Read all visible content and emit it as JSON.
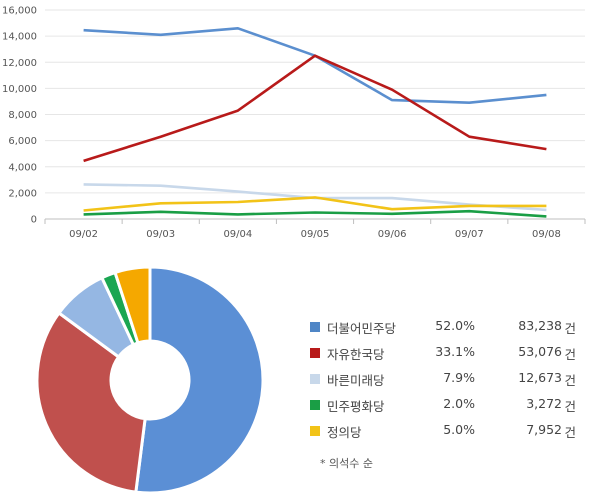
{
  "chart_data": [
    {
      "type": "line",
      "x": [
        "09/02",
        "09/03",
        "09/04",
        "09/05",
        "09/06",
        "09/07",
        "09/08"
      ],
      "ylim": [
        0,
        16000
      ],
      "yticks": [
        "0",
        "2,000",
        "4,000",
        "6,000",
        "8,000",
        "10,000",
        "12,000",
        "14,000",
        "16,000"
      ],
      "grid": true,
      "series": [
        {
          "color": "#5b8fcf",
          "values": [
            14450,
            14100,
            14600,
            12500,
            9100,
            8900,
            9500
          ]
        },
        {
          "color": "#b81a1a",
          "values": [
            4450,
            6300,
            8300,
            12500,
            9900,
            6300,
            5350
          ]
        },
        {
          "color": "#c8d8ea",
          "values": [
            2650,
            2550,
            2100,
            1600,
            1600,
            1100,
            700
          ]
        },
        {
          "color": "#f2c318",
          "values": [
            650,
            1200,
            1300,
            1650,
            750,
            1000,
            1000
          ]
        },
        {
          "color": "#1a9e45",
          "values": [
            350,
            550,
            350,
            500,
            400,
            600,
            200
          ]
        }
      ]
    },
    {
      "type": "pie",
      "slices": [
        {
          "label": "더불어민주당",
          "pct": "52.0%",
          "value": 52.0,
          "count": "83,238",
          "unit": "건",
          "color": "#5b8fd5"
        },
        {
          "label": "자유한국당",
          "pct": "33.1%",
          "value": 33.1,
          "count": "53,076",
          "unit": "건",
          "color": "#c0504d"
        },
        {
          "label": "바른미래당",
          "pct": "7.9%",
          "value": 7.9,
          "count": "12,673",
          "unit": "건",
          "color": "#95b7e3"
        },
        {
          "label": "민주평화당",
          "pct": "2.0%",
          "value": 2.0,
          "count": "3,272",
          "unit": "건",
          "color": "#1aa652"
        },
        {
          "label": "정의당",
          "pct": "5.0%",
          "value": 5.0,
          "count": "7,952",
          "unit": "건",
          "color": "#f5a800"
        }
      ],
      "legend_colors": [
        "#4f86c6",
        "#b81a1a",
        "#c8d8ea",
        "#1a9e45",
        "#f2c318"
      ],
      "footnote": "* 의석수 순"
    }
  ]
}
